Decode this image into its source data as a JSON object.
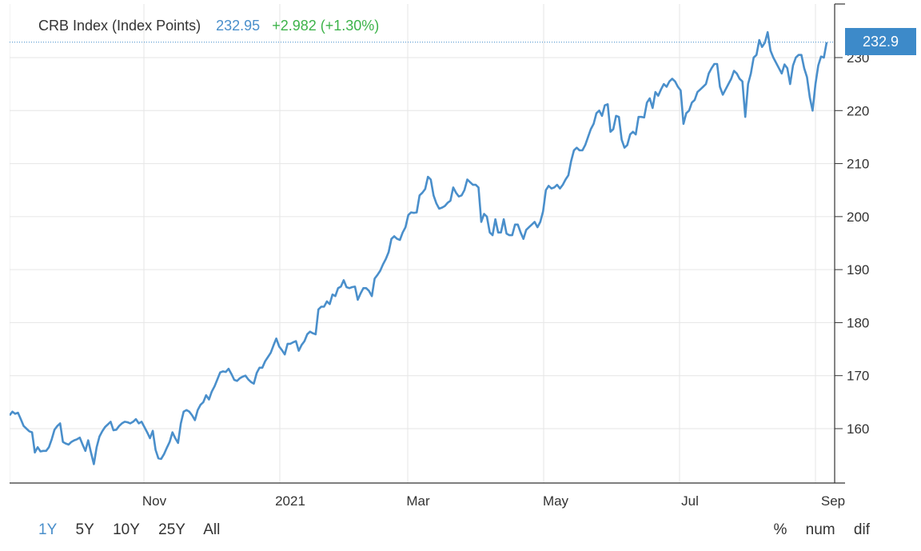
{
  "legend": {
    "name": "CRB Index (Index Points)",
    "last": "232.95",
    "change": "+2.982 (+1.30%)"
  },
  "last_tag": "232.9",
  "range_buttons": [
    "1Y",
    "5Y",
    "10Y",
    "25Y",
    "All"
  ],
  "active_range": "1Y",
  "mode_buttons": [
    "%",
    "num",
    "dif"
  ],
  "colors": {
    "line": "#4a8fcb",
    "tag": "#3d8ac9",
    "change": "#3db34a"
  },
  "chart_data": {
    "type": "line",
    "title": "CRB Index (Index Points)",
    "x_tick_labels": [
      "Nov",
      "2021",
      "Mar",
      "May",
      "Jul",
      "Sep"
    ],
    "y_ticks": [
      160,
      170,
      180,
      190,
      200,
      210,
      220,
      230
    ],
    "ylim": [
      150,
      240
    ],
    "grid": true,
    "series": [
      {
        "name": "CRB Index (Index Points)",
        "values": [
          162.5,
          163.2,
          162.8,
          163.0,
          161.8,
          160.5,
          160.0,
          159.5,
          159.3,
          155.5,
          156.5,
          155.7,
          155.8,
          155.8,
          156.5,
          158.0,
          159.8,
          160.5,
          161.0,
          157.5,
          157.2,
          157.0,
          157.5,
          157.8,
          158.0,
          158.3,
          157.0,
          155.8,
          157.8,
          155.5,
          153.3,
          156.5,
          158.5,
          159.5,
          160.3,
          160.8,
          161.3,
          159.7,
          159.8,
          160.5,
          161.0,
          161.3,
          161.2,
          161.0,
          161.3,
          161.8,
          161.0,
          161.3,
          160.3,
          159.3,
          158.2,
          159.6,
          156.0,
          154.4,
          154.3,
          155.2,
          156.4,
          157.5,
          159.3,
          158.2,
          157.3,
          161.0,
          163.2,
          163.5,
          163.2,
          162.5,
          161.6,
          163.5,
          164.5,
          165.0,
          166.3,
          165.5,
          167.0,
          168.0,
          169.3,
          170.6,
          170.8,
          170.7,
          171.3,
          170.3,
          169.2,
          169.0,
          169.5,
          169.8,
          170.0,
          169.3,
          168.8,
          168.5,
          170.5,
          171.5,
          171.5,
          172.7,
          173.5,
          174.3,
          175.7,
          177.0,
          175.5,
          174.8,
          174.0,
          176.0,
          176.0,
          176.3,
          176.5,
          174.7,
          175.8,
          176.5,
          177.8,
          178.3,
          178.0,
          177.8,
          182.5,
          183.0,
          183.0,
          184.0,
          183.5,
          185.3,
          185.0,
          186.5,
          186.8,
          188.0,
          186.7,
          186.5,
          186.7,
          186.8,
          184.3,
          185.5,
          186.5,
          186.5,
          186.0,
          185.0,
          188.3,
          189.0,
          189.8,
          191.0,
          192.0,
          193.3,
          195.8,
          196.3,
          195.8,
          195.6,
          197.0,
          198.0,
          200.3,
          200.8,
          200.7,
          200.8,
          204.0,
          204.5,
          205.2,
          207.5,
          207.0,
          204.0,
          202.5,
          201.5,
          201.7,
          202.0,
          202.6,
          203.0,
          205.5,
          204.5,
          203.8,
          204.0,
          205.0,
          207.0,
          206.5,
          206.0,
          206.0,
          205.5,
          199.0,
          200.5,
          200.0,
          197.0,
          196.5,
          199.5,
          197.0,
          197.0,
          199.5,
          196.8,
          196.5,
          196.5,
          198.5,
          198.5,
          197.0,
          195.8,
          197.5,
          198.0,
          198.5,
          199.0,
          198.0,
          199.0,
          201.0,
          205.0,
          205.8,
          205.3,
          205.5,
          206.0,
          205.3,
          206.0,
          207.0,
          207.8,
          210.5,
          212.5,
          213.0,
          212.5,
          212.5,
          213.5,
          215.0,
          216.5,
          217.5,
          219.5,
          220.0,
          219.0,
          221.0,
          221.2,
          216.0,
          216.5,
          219.0,
          218.8,
          214.5,
          213.0,
          213.5,
          215.5,
          216.0,
          215.5,
          218.8,
          218.8,
          218.7,
          221.5,
          222.3,
          220.5,
          223.5,
          222.8,
          224.0,
          225.0,
          224.5,
          225.5,
          226.0,
          225.5,
          224.5,
          223.8,
          217.5,
          219.5,
          220.0,
          221.5,
          222.0,
          223.5,
          224.0,
          224.5,
          225.0,
          227.0,
          228.0,
          228.8,
          228.8,
          224.5,
          223.0,
          224.0,
          225.0,
          226.0,
          227.5,
          227.0,
          226.0,
          225.5,
          218.8,
          225.0,
          227.0,
          230.0,
          230.5,
          233.3,
          232.0,
          232.8,
          234.8,
          231.3,
          230.0,
          229.0,
          228.0,
          227.0,
          228.7,
          228.0,
          225.0,
          228.5,
          230.0,
          230.5,
          230.5,
          228.0,
          226.3,
          222.5,
          220.0,
          225.0,
          228.5,
          230.2,
          230.0,
          232.9
        ]
      }
    ]
  }
}
